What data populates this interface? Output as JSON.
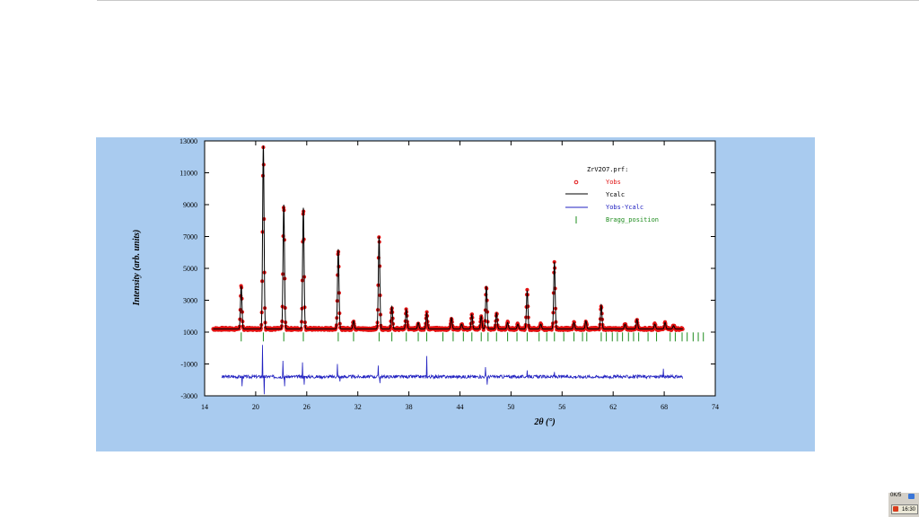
{
  "chart_data": {
    "type": "scatter",
    "title": "ZrV2O7.prf:",
    "xlabel": "2θ (°)",
    "ylabel": "Intensity (arb. units)",
    "xlim": [
      14,
      74
    ],
    "ylim": [
      -3000,
      13000
    ],
    "x_ticks": [
      "14",
      "20",
      "26",
      "32",
      "38",
      "44",
      "50",
      "56",
      "62",
      "68",
      "74"
    ],
    "y_ticks": [
      "13000",
      "11000",
      "9000",
      "7000",
      "5000",
      "3000",
      "1000",
      "-1000",
      "-3000"
    ],
    "x_tick_values": [
      14,
      20,
      26,
      32,
      38,
      44,
      50,
      56,
      62,
      68,
      74
    ],
    "y_tick_values": [
      13000,
      11000,
      9000,
      7000,
      5000,
      3000,
      1000,
      -1000,
      -3000
    ],
    "legend": [
      "Yobs",
      "Ycalc",
      "Yobs-Ycalc",
      "Bragg_position"
    ],
    "legend_position": "top-right",
    "background_level": 1200,
    "peaks": [
      {
        "x": 18.3,
        "y": 3900
      },
      {
        "x": 20.9,
        "y": 12700
      },
      {
        "x": 23.3,
        "y": 9000
      },
      {
        "x": 25.6,
        "y": 8800
      },
      {
        "x": 29.7,
        "y": 6200
      },
      {
        "x": 31.5,
        "y": 1700
      },
      {
        "x": 34.5,
        "y": 7000
      },
      {
        "x": 36.0,
        "y": 2600
      },
      {
        "x": 37.7,
        "y": 2400
      },
      {
        "x": 39.1,
        "y": 1600
      },
      {
        "x": 40.1,
        "y": 2200
      },
      {
        "x": 43.0,
        "y": 1900
      },
      {
        "x": 44.2,
        "y": 1500
      },
      {
        "x": 45.4,
        "y": 2100
      },
      {
        "x": 46.5,
        "y": 2000
      },
      {
        "x": 47.1,
        "y": 3900
      },
      {
        "x": 48.3,
        "y": 2200
      },
      {
        "x": 49.6,
        "y": 1600
      },
      {
        "x": 50.8,
        "y": 1500
      },
      {
        "x": 51.9,
        "y": 3600
      },
      {
        "x": 53.5,
        "y": 1500
      },
      {
        "x": 55.1,
        "y": 5400
      },
      {
        "x": 57.4,
        "y": 1600
      },
      {
        "x": 58.8,
        "y": 1700
      },
      {
        "x": 60.6,
        "y": 2700
      },
      {
        "x": 63.4,
        "y": 1500
      },
      {
        "x": 64.8,
        "y": 1800
      },
      {
        "x": 66.9,
        "y": 1500
      },
      {
        "x": 68.1,
        "y": 1600
      },
      {
        "x": 69.1,
        "y": 1400
      }
    ],
    "bragg_positions": [
      18.3,
      20.9,
      23.3,
      25.6,
      29.7,
      31.5,
      34.5,
      36.0,
      37.7,
      39.1,
      40.1,
      42.0,
      43.2,
      44.4,
      45.4,
      46.5,
      47.3,
      48.3,
      49.6,
      50.7,
      51.9,
      53.3,
      54.2,
      55.1,
      56.2,
      57.4,
      58.4,
      58.9,
      60.6,
      61.2,
      61.9,
      62.5,
      63.1,
      63.8,
      64.4,
      65.0,
      66.1,
      67.1,
      68.7,
      69.3,
      70.1,
      70.7,
      71.4,
      72.0,
      72.6
    ],
    "bragg_level": 700,
    "difference_level": -1800,
    "difference_spikes": [
      {
        "x": 18.4,
        "y": -2400
      },
      {
        "x": 20.8,
        "y": 200
      },
      {
        "x": 21.0,
        "y": -2900
      },
      {
        "x": 23.2,
        "y": -800
      },
      {
        "x": 23.4,
        "y": -2400
      },
      {
        "x": 25.5,
        "y": -900
      },
      {
        "x": 25.7,
        "y": -2300
      },
      {
        "x": 29.6,
        "y": -1000
      },
      {
        "x": 29.9,
        "y": -2100
      },
      {
        "x": 34.4,
        "y": -1100
      },
      {
        "x": 34.6,
        "y": -2200
      },
      {
        "x": 40.1,
        "y": -500
      },
      {
        "x": 47.0,
        "y": -1200
      },
      {
        "x": 47.2,
        "y": -2300
      },
      {
        "x": 51.9,
        "y": -1400
      },
      {
        "x": 55.1,
        "y": -1500
      },
      {
        "x": 67.9,
        "y": -1300
      }
    ]
  },
  "colors": {
    "yobs": "#e01010",
    "ycalc": "#000000",
    "diff": "#2020c0",
    "bragg": "#1e8c1e",
    "panel": "#a9cbef"
  },
  "taskbar": {
    "tray_text": "0K/5",
    "clock": "16:30"
  }
}
